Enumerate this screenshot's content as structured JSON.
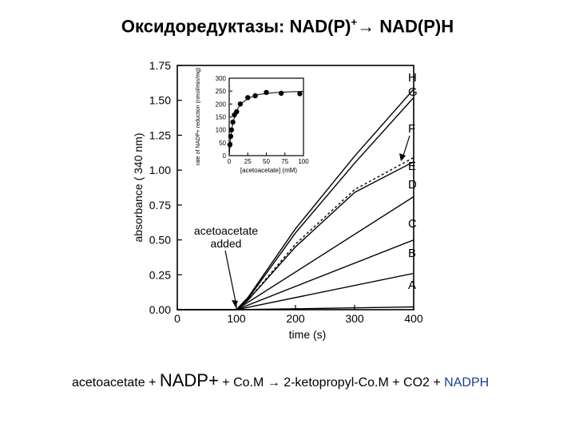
{
  "slide": {
    "title": "Оксидоредуктазы: NAD(P)",
    "title_sup": "+",
    "title_tail": "→ NAD(P)H"
  },
  "equation": {
    "part1": "acetoacetate + ",
    "nadp": "NADP+",
    "part2": " + Co.M → 2-ketopropyl-Co.M + CO2 + ",
    "nadph": "NADPH"
  },
  "chart_data": [
    {
      "type": "line",
      "xlabel": "time (s)",
      "ylabel": "absorbance ( 340 nm)",
      "xlim": [
        0,
        400
      ],
      "ylim": [
        0,
        1.75
      ],
      "x_ticks": [
        0,
        100,
        200,
        300,
        400
      ],
      "y_ticks": [
        "0.00",
        "0.25",
        "0.50",
        "0.75",
        "1.00",
        "1.25",
        "1.50",
        "1.75"
      ],
      "annotation": "acetoacetate added",
      "annotation_x": 100,
      "series": [
        {
          "name": "A",
          "points": [
            [
              0,
              0
            ],
            [
              100,
              0
            ],
            [
              400,
              0.02
            ]
          ],
          "dash": false
        },
        {
          "name": "B",
          "points": [
            [
              0,
              0
            ],
            [
              100,
              0
            ],
            [
              400,
              0.26
            ]
          ],
          "dash": false
        },
        {
          "name": "C",
          "points": [
            [
              0,
              0
            ],
            [
              100,
              0
            ],
            [
              400,
              0.5
            ]
          ],
          "dash": false
        },
        {
          "name": "D",
          "points": [
            [
              0,
              0
            ],
            [
              100,
              0
            ],
            [
              400,
              0.81
            ]
          ],
          "dash": false
        },
        {
          "name": "E",
          "points": [
            [
              0,
              0
            ],
            [
              100,
              0
            ],
            [
              120,
              0.07
            ],
            [
              200,
              0.45
            ],
            [
              300,
              0.84
            ],
            [
              400,
              1.06
            ]
          ],
          "dash": false
        },
        {
          "name": "F",
          "points": [
            [
              0,
              0
            ],
            [
              100,
              0
            ],
            [
              120,
              0.07
            ],
            [
              200,
              0.47
            ],
            [
              300,
              0.86
            ],
            [
              400,
              1.09
            ]
          ],
          "dash": true
        },
        {
          "name": "G",
          "points": [
            [
              0,
              0
            ],
            [
              100,
              0
            ],
            [
              120,
              0.08
            ],
            [
              200,
              0.55
            ],
            [
              300,
              1.05
            ],
            [
              400,
              1.52
            ]
          ],
          "dash": false
        },
        {
          "name": "H",
          "points": [
            [
              0,
              0
            ],
            [
              100,
              0
            ],
            [
              120,
              0.09
            ],
            [
              200,
              0.58
            ],
            [
              300,
              1.1
            ],
            [
              400,
              1.58
            ]
          ],
          "dash": false
        }
      ]
    },
    {
      "type": "scatter",
      "xlabel": "[acetoacetate] (mM)",
      "ylabel": "rate of NADP+ reduction (nmol/min/mg)",
      "xlim": [
        0,
        100
      ],
      "ylim": [
        0,
        300
      ],
      "x_ticks": [
        "0",
        "25",
        "50",
        "75",
        "100"
      ],
      "y_ticks": [
        "0",
        "50",
        "100",
        "150",
        "200",
        "250",
        "300"
      ],
      "points": [
        [
          1,
          42
        ],
        [
          2,
          75
        ],
        [
          3,
          100
        ],
        [
          5,
          130
        ],
        [
          7,
          158
        ],
        [
          10,
          170
        ],
        [
          15,
          200
        ],
        [
          25,
          225
        ],
        [
          35,
          232
        ],
        [
          50,
          245
        ],
        [
          70,
          242
        ],
        [
          95,
          240
        ]
      ],
      "fit": [
        [
          0,
          0
        ],
        [
          2,
          70
        ],
        [
          5,
          128
        ],
        [
          10,
          175
        ],
        [
          15,
          198
        ],
        [
          25,
          222
        ],
        [
          40,
          237
        ],
        [
          60,
          244
        ],
        [
          80,
          247
        ],
        [
          100,
          249
        ]
      ]
    }
  ]
}
